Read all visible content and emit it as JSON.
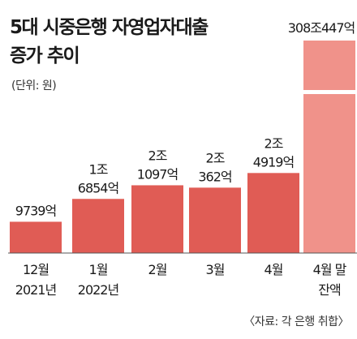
{
  "title_lines": [
    "5대 시중은행 자영업자대출",
    "증가 추이"
  ],
  "unit": "(단위: 원)",
  "source": "〈자료: 각 은행 취합〉",
  "colors": {
    "bar": "#e05c55",
    "bar_total": "#f0928a",
    "axis": "#555555"
  },
  "chart_data": {
    "type": "bar",
    "title": "5대 시중은행 자영업자대출 증가 추이",
    "unit": "(단위: 원)",
    "categories": [
      [
        "12월",
        "2021년"
      ],
      [
        "1월",
        "2022년"
      ],
      [
        "2월"
      ],
      [
        "3월"
      ],
      [
        "4월"
      ],
      [
        "4월 말",
        "잔액"
      ]
    ],
    "values_eok": [
      9739,
      16854,
      21097,
      20362,
      24919,
      3080447
    ],
    "value_labels": [
      [
        "9739억"
      ],
      [
        "1조",
        "6854억"
      ],
      [
        "2조",
        "1097억"
      ],
      [
        "2조",
        "362억"
      ],
      [
        "2조",
        "4919억"
      ],
      [
        "308조447억"
      ]
    ],
    "axis_break_on_last_bar": true
  }
}
